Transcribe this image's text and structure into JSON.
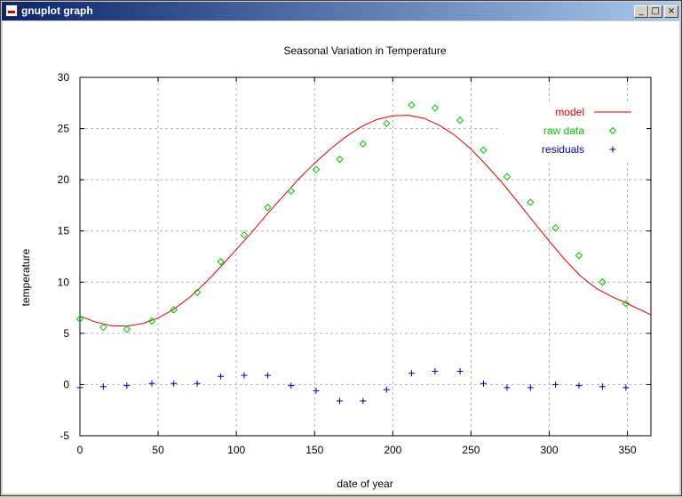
{
  "window": {
    "title": "gnuplot graph"
  },
  "icons": {
    "app": "gnuplot-app-icon",
    "minimize": "minimize-icon",
    "maximize": "maximize-icon",
    "close": "close-icon"
  },
  "chart_data": {
    "type": "scatter",
    "title": "Seasonal Variation in Temperature",
    "xlabel": "date of year",
    "ylabel": "temperature",
    "xlim": [
      0,
      365
    ],
    "ylim": [
      -5,
      30
    ],
    "xticks": [
      0,
      50,
      100,
      150,
      200,
      250,
      300,
      350
    ],
    "yticks": [
      -5,
      0,
      5,
      10,
      15,
      20,
      25,
      30
    ],
    "grid": true,
    "legend_position": "top-right",
    "colors": {
      "model": "#e00000",
      "raw": "#00c800",
      "residuals": "#0000b0",
      "grid": "#b4b4b4"
    },
    "series": [
      {
        "name": "model",
        "style": "line",
        "x": [
          0,
          10,
          20,
          30,
          40,
          50,
          60,
          70,
          80,
          90,
          100,
          110,
          120,
          130,
          140,
          150,
          160,
          170,
          180,
          190,
          200,
          210,
          220,
          230,
          240,
          250,
          260,
          270,
          280,
          290,
          300,
          310,
          320,
          330,
          340,
          350,
          365
        ],
        "y": [
          6.7,
          6.1,
          5.75,
          5.7,
          5.95,
          6.5,
          7.35,
          8.5,
          9.9,
          11.5,
          13.2,
          14.9,
          16.7,
          18.4,
          20.1,
          21.6,
          23.0,
          24.2,
          25.2,
          25.9,
          26.25,
          26.3,
          26.0,
          25.3,
          24.3,
          23.0,
          21.4,
          19.7,
          17.8,
          15.9,
          14.0,
          12.2,
          10.6,
          9.4,
          8.6,
          7.9,
          6.8
        ]
      },
      {
        "name": "raw data",
        "style": "points",
        "x": [
          0,
          15,
          30,
          46,
          60,
          75,
          90,
          105,
          120,
          135,
          151,
          166,
          181,
          196,
          212,
          227,
          243,
          258,
          273,
          288,
          304,
          319,
          334,
          349
        ],
        "y": [
          6.4,
          5.6,
          5.4,
          6.2,
          7.3,
          9.0,
          12.0,
          14.6,
          17.3,
          18.9,
          21.0,
          22.0,
          23.5,
          25.5,
          27.3,
          27.0,
          25.8,
          22.9,
          20.3,
          17.8,
          15.3,
          12.6,
          10.0,
          7.9
        ]
      },
      {
        "name": "residuals",
        "style": "points",
        "x": [
          0,
          15,
          30,
          46,
          60,
          75,
          90,
          105,
          120,
          135,
          151,
          166,
          181,
          196,
          212,
          227,
          243,
          258,
          273,
          288,
          304,
          319,
          334,
          349
        ],
        "y": [
          -0.3,
          -0.2,
          -0.1,
          0.1,
          0.1,
          0.1,
          0.8,
          0.9,
          0.9,
          -0.1,
          -0.6,
          -1.6,
          -1.6,
          -0.5,
          1.1,
          1.3,
          1.3,
          0.1,
          -0.3,
          -0.3,
          0.0,
          -0.1,
          -0.2,
          -0.3
        ]
      }
    ]
  }
}
